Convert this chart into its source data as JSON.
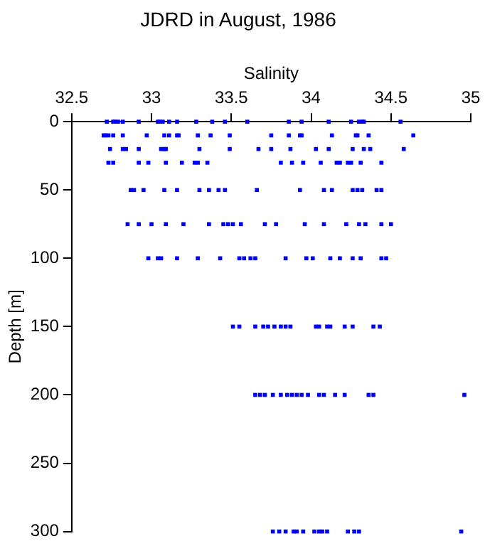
{
  "chart_data": {
    "type": "scatter",
    "title": "JDRD in August, 1986",
    "xlabel": "Salinity",
    "ylabel": "Depth [m]",
    "xlim": [
      32.5,
      35
    ],
    "xticks": [
      32.5,
      33,
      33.5,
      34,
      34.5,
      35
    ],
    "ylim": [
      300,
      0
    ],
    "yticks": [
      0,
      50,
      100,
      150,
      200,
      250,
      300
    ],
    "grid": false,
    "legend": false,
    "marker": "square",
    "series": [
      {
        "color": "#0000ff",
        "x": [
          32.72,
          32.76,
          32.77,
          32.79,
          32.82,
          32.92,
          33.04,
          33.05,
          33.07,
          33.11,
          33.16,
          33.28,
          33.38,
          33.46,
          33.6,
          33.86,
          33.94,
          34.11,
          34.25,
          34.3,
          34.32,
          34.33,
          34.56,
          32.7,
          32.71,
          32.73,
          32.76,
          32.82,
          32.97,
          33.08,
          33.11,
          33.16,
          33.17,
          33.29,
          33.37,
          33.49,
          33.75,
          33.86,
          33.93,
          33.94,
          34.13,
          34.28,
          34.29,
          34.36,
          34.64,
          32.74,
          32.82,
          32.84,
          32.92,
          33.06,
          33.08,
          33.09,
          33.3,
          33.49,
          33.67,
          33.75,
          33.87,
          34.03,
          34.11,
          34.26,
          34.33,
          34.37,
          34.58,
          32.73,
          32.76,
          32.92,
          32.98,
          33.09,
          33.19,
          33.27,
          33.29,
          33.35,
          33.81,
          33.88,
          33.95,
          34.06,
          34.16,
          34.18,
          34.23,
          34.25,
          34.31,
          34.44,
          32.87,
          32.89,
          32.95,
          33.08,
          33.16,
          33.3,
          33.36,
          33.42,
          33.46,
          33.66,
          33.93,
          34.08,
          34.13,
          34.26,
          34.29,
          34.32,
          34.41,
          34.44,
          32.85,
          32.92,
          33.0,
          33.09,
          33.2,
          33.36,
          33.45,
          33.48,
          33.51,
          33.56,
          33.71,
          33.78,
          33.96,
          34.08,
          34.22,
          34.3,
          34.34,
          34.44,
          34.5,
          32.98,
          33.04,
          33.06,
          33.16,
          33.29,
          33.43,
          33.55,
          33.58,
          33.62,
          33.65,
          33.84,
          33.97,
          34.01,
          34.12,
          34.18,
          34.26,
          34.31,
          34.44,
          34.47,
          33.51,
          33.55,
          33.65,
          33.7,
          33.73,
          33.77,
          33.81,
          33.84,
          33.87,
          34.03,
          34.05,
          34.1,
          34.12,
          34.21,
          34.26,
          34.39,
          34.43,
          33.65,
          33.68,
          33.71,
          33.76,
          33.81,
          33.85,
          33.88,
          33.91,
          33.94,
          33.98,
          34.05,
          34.08,
          34.15,
          34.21,
          34.36,
          34.39,
          34.96,
          33.76,
          33.8,
          33.84,
          33.89,
          33.91,
          33.95,
          34.02,
          34.05,
          34.07,
          34.1,
          34.23,
          34.27,
          34.3,
          34.94
        ],
        "values": [
          0,
          0,
          0,
          0,
          0,
          0,
          0,
          0,
          0,
          0,
          0,
          0,
          0,
          0,
          0,
          0,
          0,
          0,
          0,
          0,
          0,
          0,
          0,
          10,
          10,
          10,
          10,
          10,
          10,
          10,
          10,
          10,
          10,
          10,
          10,
          10,
          10,
          10,
          10,
          10,
          10,
          10,
          10,
          10,
          10,
          20,
          20,
          20,
          20,
          20,
          20,
          20,
          20,
          20,
          20,
          20,
          20,
          20,
          20,
          20,
          20,
          20,
          20,
          30,
          30,
          30,
          30,
          30,
          30,
          30,
          30,
          30,
          30,
          30,
          30,
          30,
          30,
          30,
          30,
          30,
          30,
          30,
          50,
          50,
          50,
          50,
          50,
          50,
          50,
          50,
          50,
          50,
          50,
          50,
          50,
          50,
          50,
          50,
          50,
          50,
          75,
          75,
          75,
          75,
          75,
          75,
          75,
          75,
          75,
          75,
          75,
          75,
          75,
          75,
          75,
          75,
          75,
          75,
          75,
          100,
          100,
          100,
          100,
          100,
          100,
          100,
          100,
          100,
          100,
          100,
          100,
          100,
          100,
          100,
          100,
          100,
          100,
          100,
          150,
          150,
          150,
          150,
          150,
          150,
          150,
          150,
          150,
          150,
          150,
          150,
          150,
          150,
          150,
          150,
          150,
          200,
          200,
          200,
          200,
          200,
          200,
          200,
          200,
          200,
          200,
          200,
          200,
          200,
          200,
          200,
          200,
          200,
          300,
          300,
          300,
          300,
          300,
          300,
          300,
          300,
          300,
          300,
          300,
          300,
          300,
          300
        ]
      }
    ]
  }
}
